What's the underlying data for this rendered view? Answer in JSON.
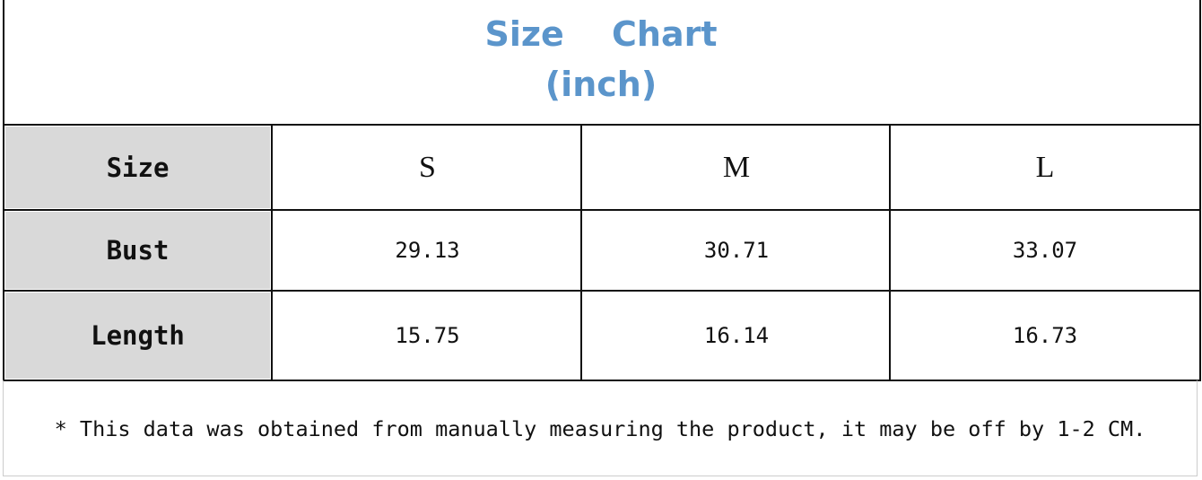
{
  "title": {
    "line1": "Size Chart",
    "line2": "(inch)"
  },
  "table": {
    "columns": [
      "Size",
      "S",
      "M",
      "L"
    ],
    "rows": [
      {
        "label": "Bust",
        "values": [
          "29.13",
          "30.71",
          "33.07"
        ]
      },
      {
        "label": "Length",
        "values": [
          "15.75",
          "16.14",
          "16.73"
        ]
      }
    ]
  },
  "footnote": "* This data was obtained from manually measuring the product, it may be off by 1-2 CM."
}
